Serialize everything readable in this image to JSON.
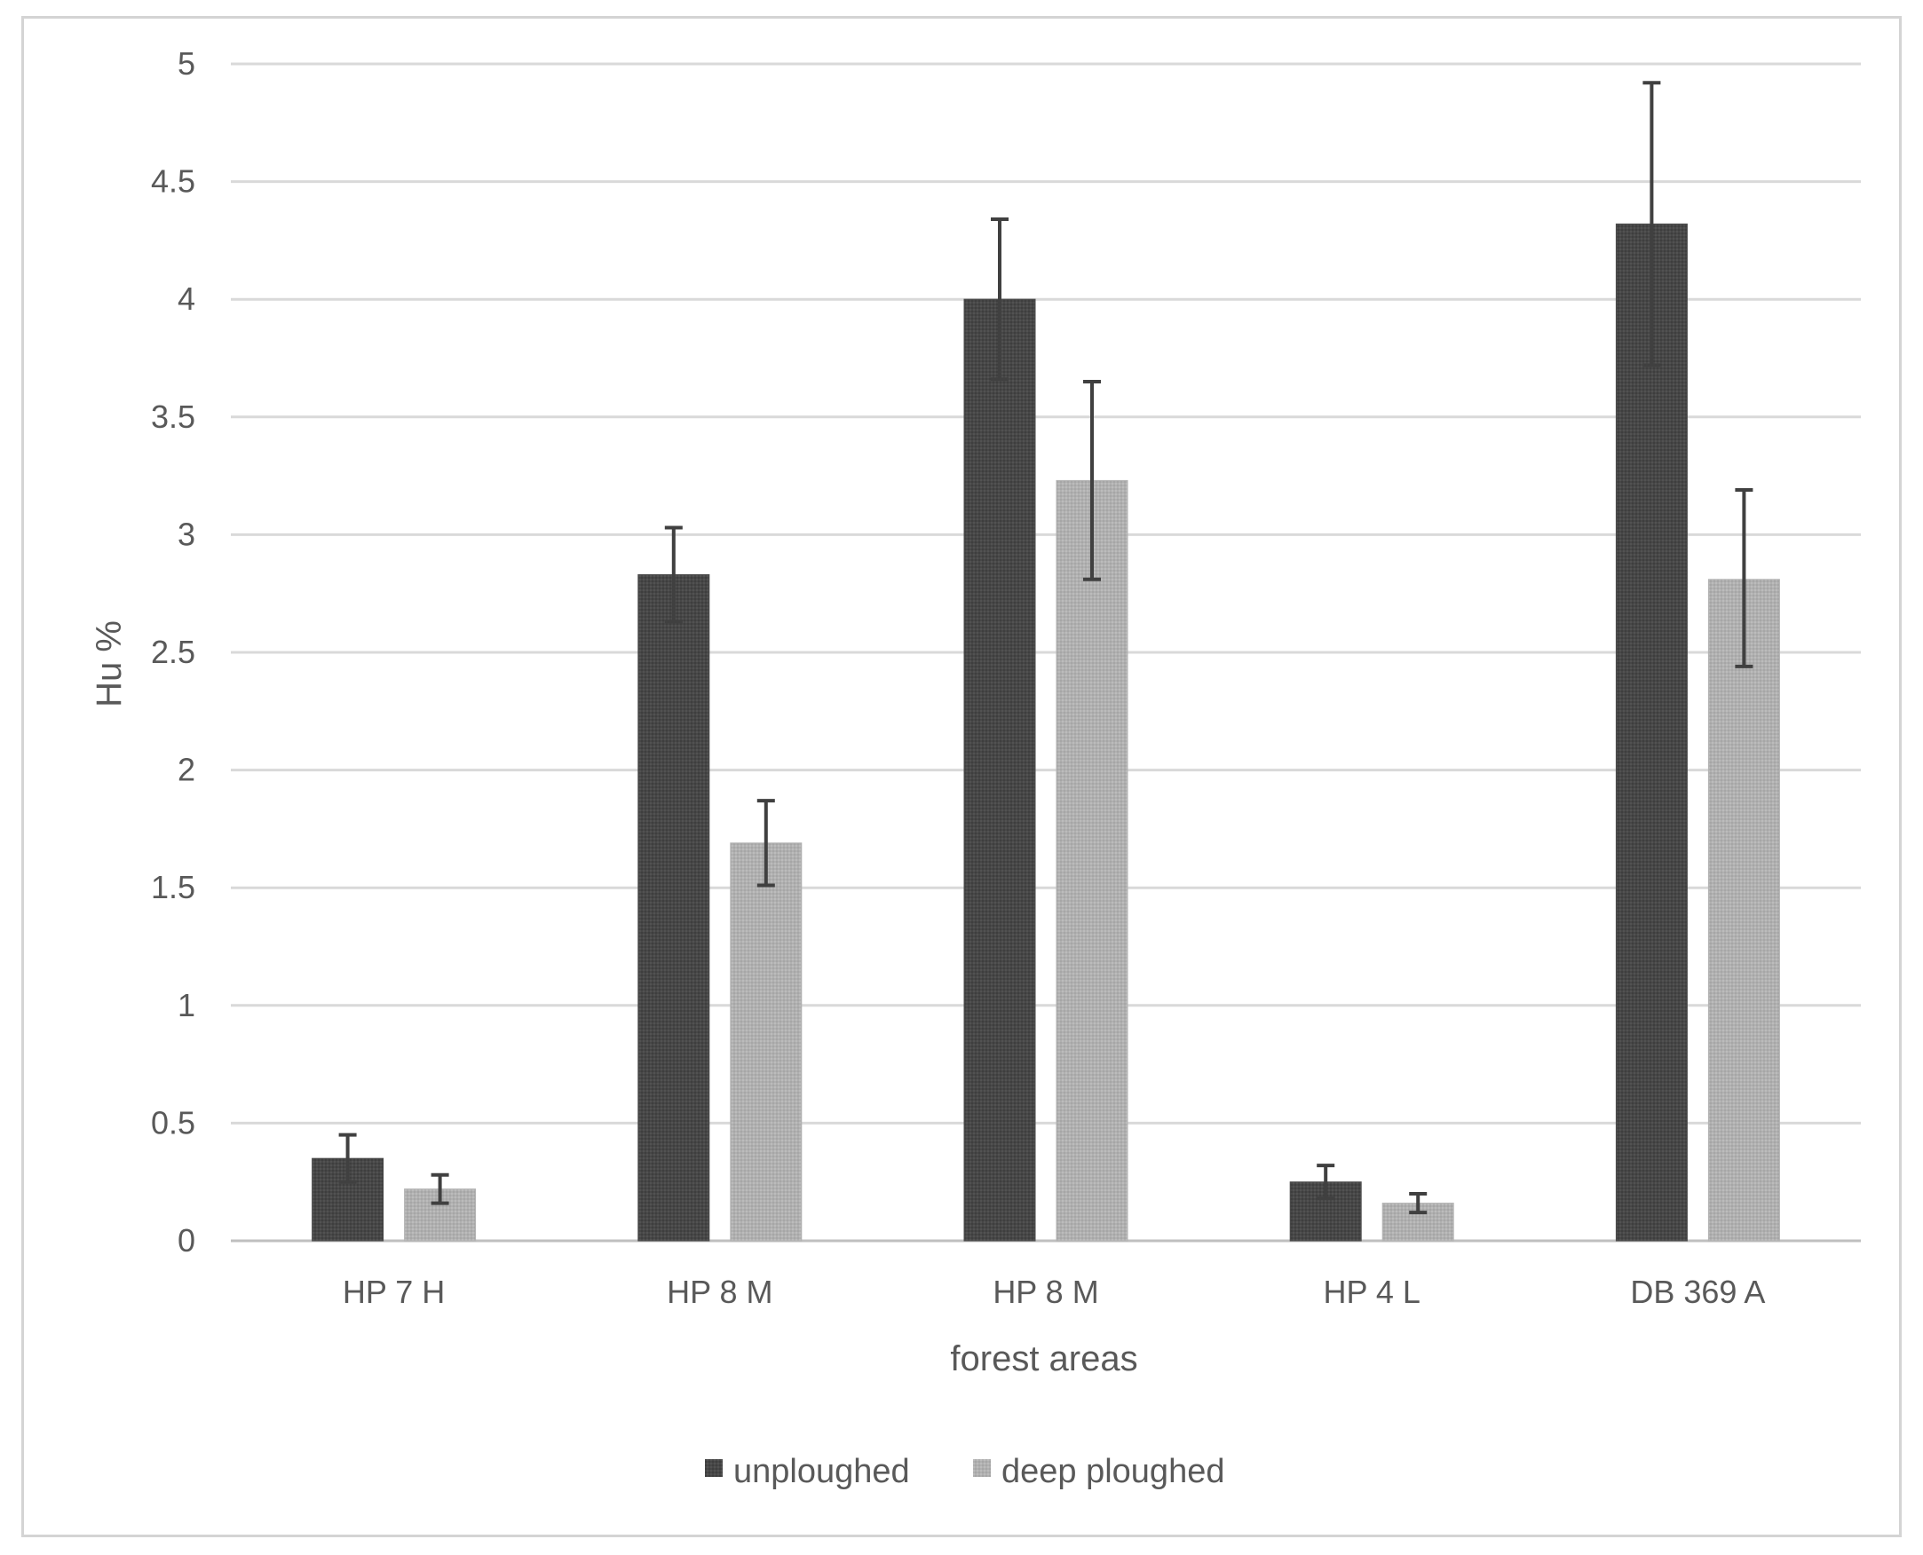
{
  "chart_data": {
    "type": "bar",
    "title": "",
    "xlabel": "forest areas",
    "ylabel": "Hu %",
    "ylim": [
      0,
      5
    ],
    "yticks": [
      0,
      0.5,
      1,
      1.5,
      2,
      2.5,
      3,
      3.5,
      4,
      4.5,
      5
    ],
    "ytick_labels": [
      "0",
      "0.5",
      "1",
      "1.5",
      "2",
      "2.5",
      "3",
      "3.5",
      "4",
      "4.5",
      "5"
    ],
    "grid": true,
    "legend_position": "bottom",
    "categories": [
      "HP 7 H",
      "HP 8 M",
      "HP 8 M",
      "HP 4 L",
      "DB 369 A"
    ],
    "series": [
      {
        "name": "unploughed",
        "color": "#4a4a4a",
        "values": [
          0.35,
          2.83,
          4.0,
          0.25,
          4.32
        ],
        "error_upper": [
          0.45,
          3.03,
          4.34,
          0.32,
          4.92
        ],
        "error_lower": [
          0.25,
          2.63,
          3.66,
          0.18,
          3.72
        ]
      },
      {
        "name": "deep ploughed",
        "color": "#b3b3b3",
        "values": [
          0.22,
          1.69,
          3.23,
          0.16,
          2.81
        ],
        "error_upper": [
          0.28,
          1.87,
          3.65,
          0.2,
          3.19
        ],
        "error_lower": [
          0.16,
          1.51,
          2.81,
          0.12,
          2.44
        ]
      }
    ]
  }
}
